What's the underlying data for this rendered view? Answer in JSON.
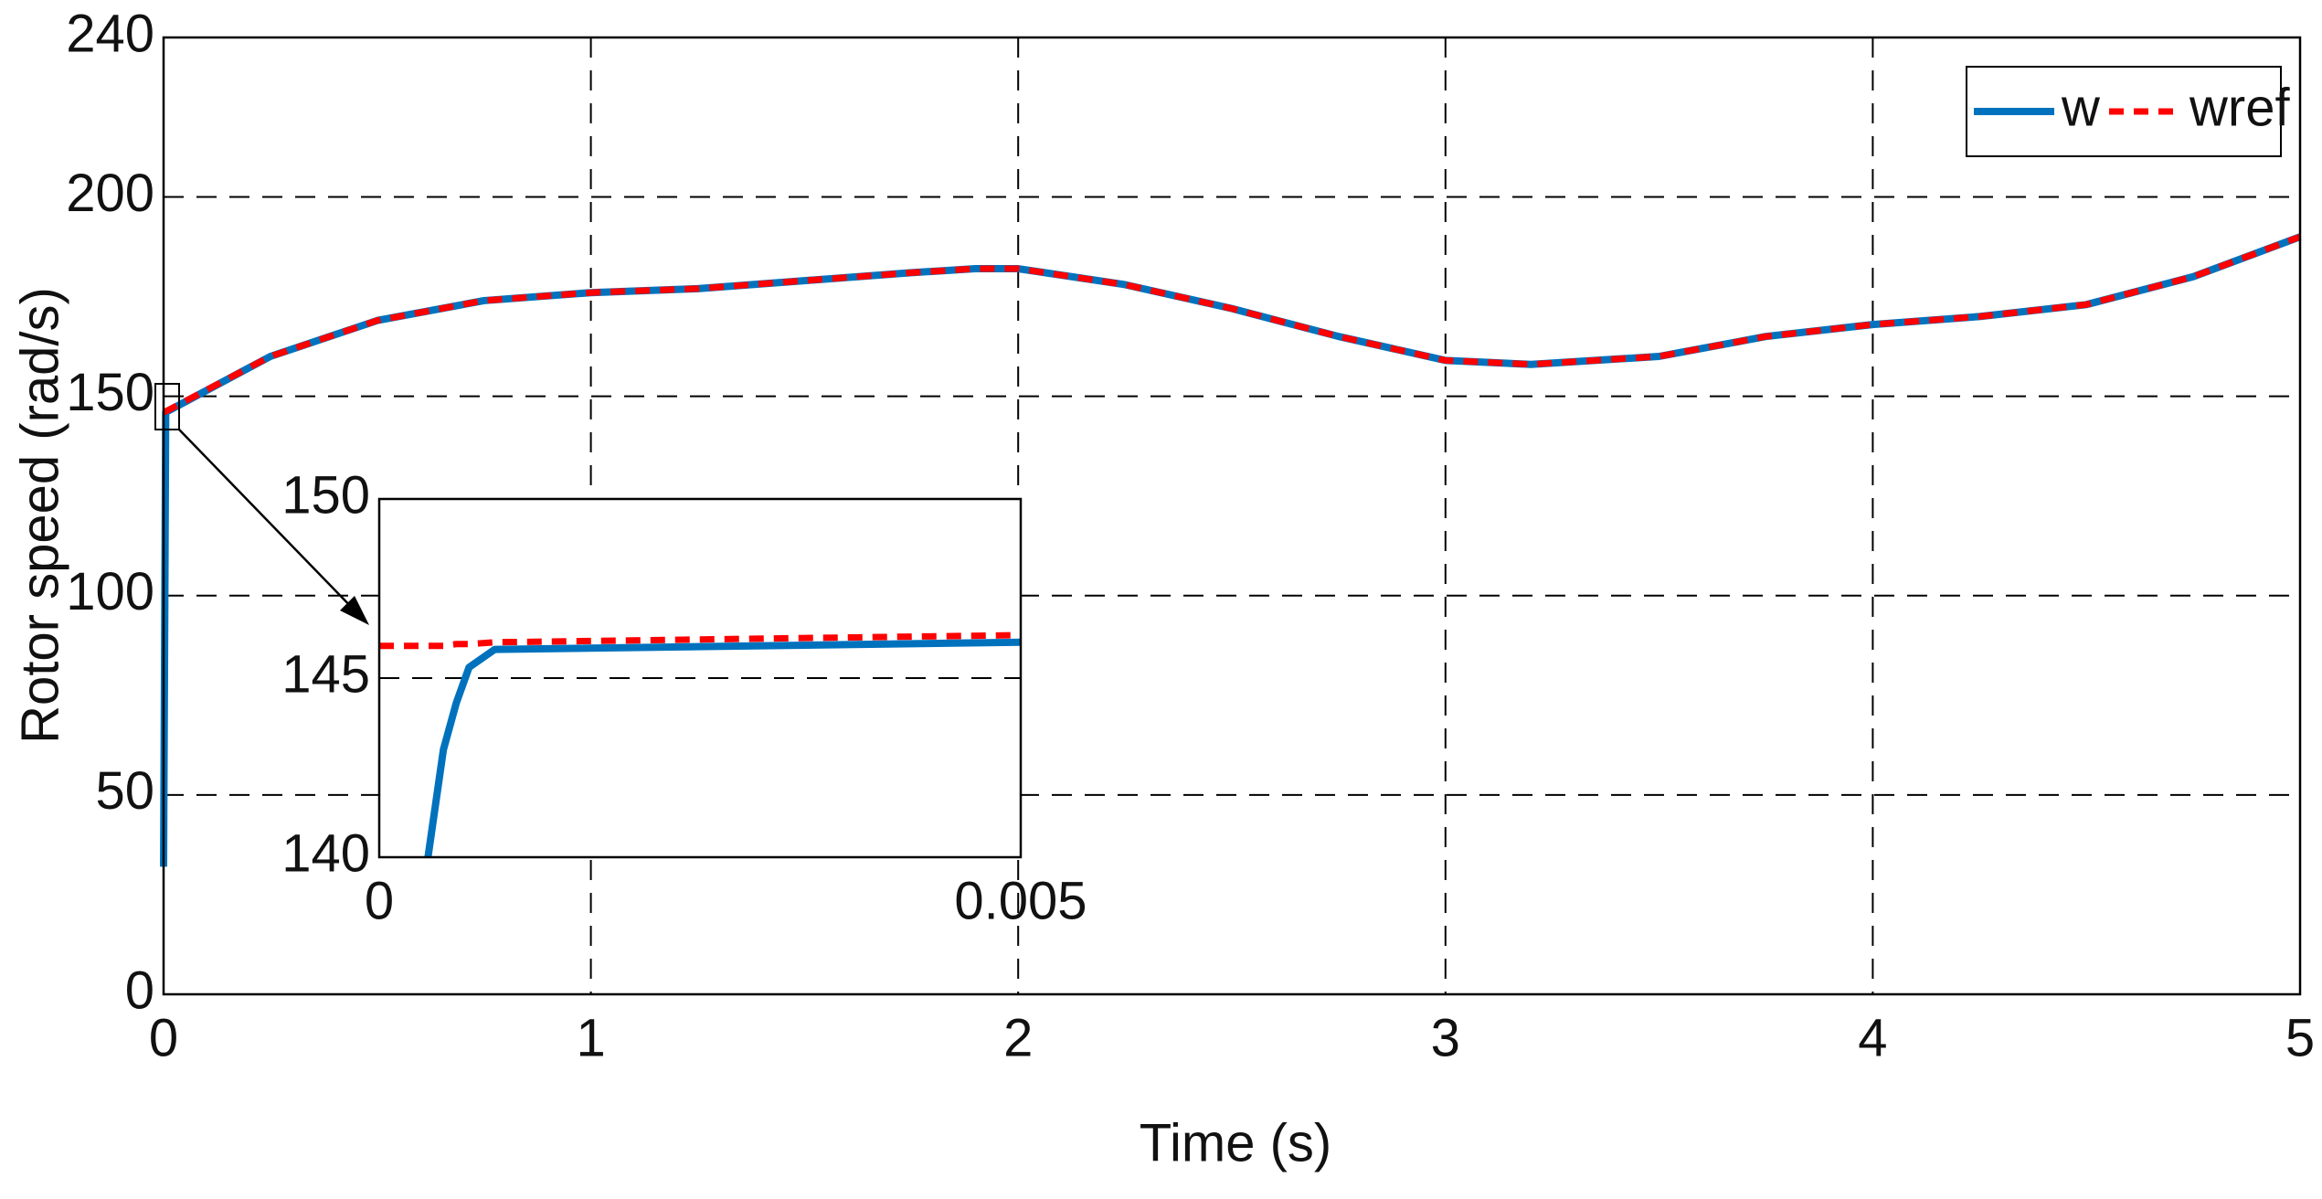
{
  "chart_data": [
    {
      "type": "line",
      "xlabel": "Time (s)",
      "ylabel": "Rotor speed (rad/s)",
      "x": [
        0,
        0.005,
        0.25,
        0.5,
        0.75,
        1,
        1.25,
        1.5,
        1.75,
        1.9,
        2,
        2.25,
        2.5,
        2.75,
        3,
        3.2,
        3.5,
        3.75,
        4,
        4.25,
        4.5,
        4.75,
        5
      ],
      "series": [
        {
          "name": "w",
          "color": "#0072bd",
          "linestyle": "solid",
          "values": [
            32,
            146,
            160,
            169,
            174,
            176,
            177,
            179,
            181,
            182,
            182,
            178,
            172,
            165,
            159,
            158,
            160,
            165,
            168,
            170,
            173,
            180,
            190
          ]
        },
        {
          "name": "wref",
          "color": "#ff0000",
          "linestyle": "dashed",
          "values": [
            146,
            146.2,
            160,
            169,
            174,
            176,
            177,
            179,
            181,
            182,
            182,
            178,
            172,
            165,
            159,
            158,
            160,
            165,
            168,
            170,
            173,
            180,
            190
          ]
        }
      ],
      "xlim": [
        0,
        5
      ],
      "xticks": [
        0,
        1,
        2,
        3,
        4,
        5
      ],
      "ylim": [
        0,
        240
      ],
      "yticks": [
        0,
        50,
        100,
        150,
        200,
        240
      ],
      "grid": true,
      "legend": "upper right"
    },
    {
      "type": "line",
      "x": [
        0,
        0.00038,
        0.0005,
        0.0006,
        0.0007,
        0.0009,
        0.005
      ],
      "series": [
        {
          "color": "#0072bd",
          "linestyle": "solid",
          "values": [
            null,
            140,
            143,
            144.3,
            145.3,
            145.8,
            146.0
          ]
        },
        {
          "color": "#ff0000",
          "linestyle": "dashed",
          "values": [
            145.9,
            145.9,
            145.9,
            145.95,
            145.95,
            146.0,
            146.2
          ]
        }
      ],
      "xlim": [
        0,
        0.005
      ],
      "xticks": [
        0,
        0.005
      ],
      "ylim": [
        140,
        150
      ],
      "yticks": [
        140,
        145,
        150
      ],
      "grid": true
    }
  ]
}
